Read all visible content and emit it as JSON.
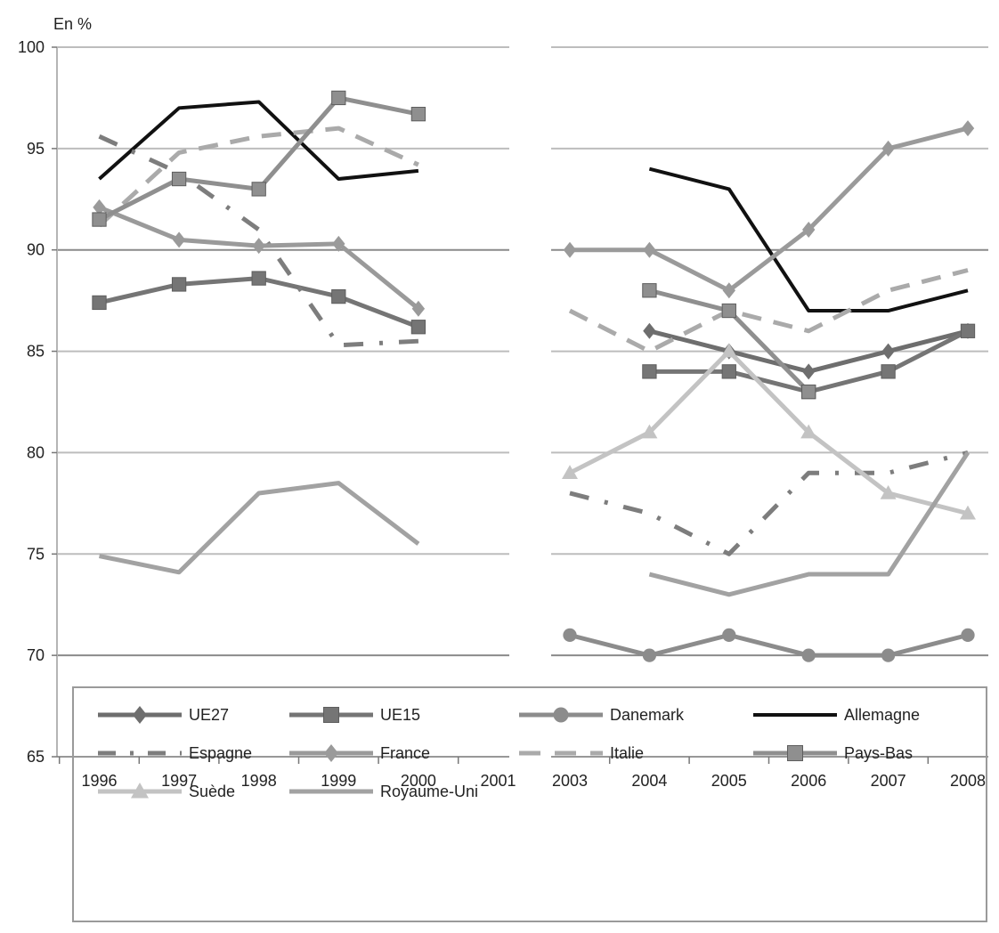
{
  "chart_data": {
    "type": "line",
    "unit_label": "En %",
    "ylim": [
      65,
      100
    ],
    "yticks": [
      65,
      70,
      75,
      80,
      85,
      90,
      95,
      100
    ],
    "grid": true,
    "legend_position": "bottom",
    "panels": [
      {
        "categories": [
          "1996",
          "1997",
          "1998",
          "1999",
          "2000",
          "2001"
        ]
      },
      {
        "categories": [
          "2003",
          "2004",
          "2005",
          "2006",
          "2007",
          "2008"
        ]
      }
    ],
    "series": [
      {
        "name": "UE27",
        "color": "#6e6e6e",
        "marker": "diamond",
        "dash": "solid",
        "panels": [
          [
            null,
            null,
            null,
            null,
            null,
            null
          ],
          [
            null,
            86,
            85,
            84,
            85,
            86
          ]
        ]
      },
      {
        "name": "UE15",
        "color": "#757575",
        "marker": "square",
        "dash": "solid",
        "panels": [
          [
            87.4,
            88.3,
            88.6,
            87.7,
            86.2,
            null
          ],
          [
            null,
            84,
            84,
            83,
            84,
            86
          ]
        ]
      },
      {
        "name": "Danemark",
        "color": "#8c8c8c",
        "marker": "circle",
        "dash": "solid",
        "panels": [
          [
            null,
            null,
            null,
            null,
            null,
            null
          ],
          [
            71,
            70,
            71,
            70,
            70,
            71
          ]
        ]
      },
      {
        "name": "Allemagne",
        "color": "#111111",
        "marker": "none",
        "dash": "solid",
        "panels": [
          [
            93.5,
            97,
            97.3,
            93.5,
            93.9,
            null
          ],
          [
            null,
            94,
            93,
            87,
            87,
            88
          ]
        ]
      },
      {
        "name": "Espagne",
        "color": "#7d7d7d",
        "marker": "none",
        "dash": "dashdot",
        "panels": [
          [
            95.6,
            93.8,
            91,
            85.3,
            85.5,
            null
          ],
          [
            78,
            77,
            75,
            79,
            79,
            80
          ]
        ]
      },
      {
        "name": "France",
        "color": "#9a9a9a",
        "marker": "diamond",
        "dash": "solid",
        "panels": [
          [
            92.1,
            90.5,
            90.2,
            90.3,
            87.1,
            null
          ],
          [
            90,
            90,
            88,
            91,
            95,
            96
          ]
        ]
      },
      {
        "name": "Italie",
        "color": "#aaaaaa",
        "marker": "none",
        "dash": "dash",
        "panels": [
          [
            91.2,
            94.8,
            95.6,
            96,
            94.2,
            null
          ],
          [
            87,
            85,
            87,
            86,
            88,
            89
          ]
        ]
      },
      {
        "name": "Pays-Bas",
        "color": "#8f8f8f",
        "marker": "square",
        "dash": "solid",
        "panels": [
          [
            91.5,
            93.5,
            93,
            97.5,
            96.7,
            null
          ],
          [
            null,
            88,
            87,
            83,
            null,
            null
          ]
        ]
      },
      {
        "name": "Suède",
        "color": "#c3c3c3",
        "marker": "triangle",
        "dash": "solid",
        "panels": [
          [
            null,
            null,
            null,
            null,
            null,
            null
          ],
          [
            79,
            81,
            85,
            81,
            78,
            77
          ]
        ]
      },
      {
        "name": "Royaume-Uni",
        "color": "#a2a2a2",
        "marker": "none",
        "dash": "solid",
        "panels": [
          [
            74.9,
            74.1,
            78,
            78.5,
            75.5,
            null
          ],
          [
            null,
            74,
            73,
            74,
            74,
            80
          ]
        ]
      }
    ]
  }
}
